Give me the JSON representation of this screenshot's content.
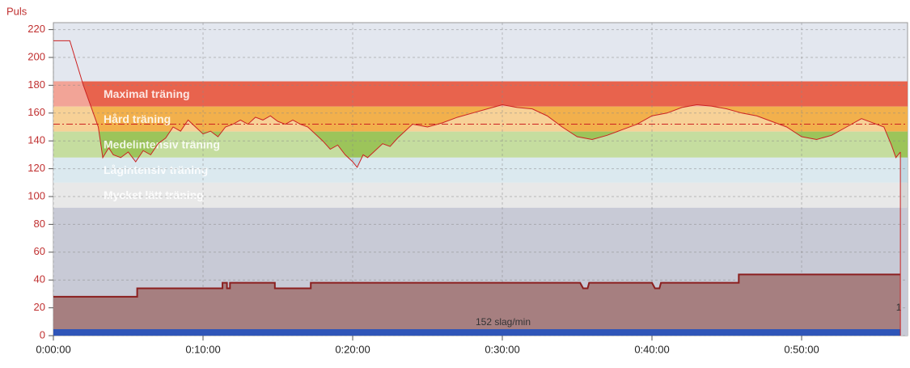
{
  "chart_data": {
    "type": "line",
    "y_label": "Puls",
    "xlim": [
      0,
      57.08
    ],
    "ylim": [
      0,
      225
    ],
    "xticks": [
      {
        "value": 0,
        "label": "0:00:00"
      },
      {
        "value": 10,
        "label": "0:10:00"
      },
      {
        "value": 20,
        "label": "0:20:00"
      },
      {
        "value": 30,
        "label": "0:30:00"
      },
      {
        "value": 40,
        "label": "0:40:00"
      },
      {
        "value": 50,
        "label": "0:50:00"
      }
    ],
    "yticks": [
      0,
      20,
      40,
      60,
      80,
      100,
      120,
      140,
      160,
      180,
      200,
      220
    ],
    "grid": true,
    "zones": [
      {
        "name": "Maximal träning",
        "from": 164.7,
        "to": 182.8,
        "color": "#e8634d"
      },
      {
        "name": "Hård träning",
        "from": 146.7,
        "to": 164.7,
        "color": "#f2b04c"
      },
      {
        "name": "Medelintensiv träning",
        "from": 128,
        "to": 146.7,
        "color": "#9cc45a"
      },
      {
        "name": "Lågintensiv träning",
        "from": 110,
        "to": 128,
        "color": "#c2d9e3"
      },
      {
        "name": "Mycket lätt träning",
        "from": 92,
        "to": 110,
        "color": "#d8d8d8"
      }
    ],
    "average": {
      "value": 152,
      "label": "152 slag/min"
    },
    "end_marker": "1",
    "series": [
      {
        "color": "#cc2222",
        "x": [
          0,
          1.1,
          2.0,
          3.0,
          3.3,
          3.7,
          4.0,
          4.5,
          5.0,
          5.5,
          6.0,
          6.5,
          7.0,
          7.5,
          8.0,
          8.5,
          9.0,
          9.5,
          10,
          10.5,
          11,
          11.5,
          12,
          12.5,
          13,
          13.5,
          14,
          14.5,
          15,
          15.5,
          16,
          16.5,
          17,
          17.5,
          18,
          18.5,
          19,
          19.5,
          20,
          20.3,
          20.7,
          21,
          21.5,
          22,
          22.5,
          23,
          23.5,
          24,
          25,
          26,
          27,
          28,
          29,
          30,
          31,
          32,
          33,
          34,
          35,
          36,
          37,
          38,
          39,
          40,
          41,
          42,
          43,
          44,
          45,
          46,
          47,
          48,
          49,
          50,
          51,
          52,
          53,
          54,
          55,
          55.5,
          56,
          56.3,
          56.6
        ],
        "values": [
          212,
          212,
          180,
          150,
          128,
          135,
          130,
          128,
          132,
          125,
          133,
          130,
          138,
          142,
          150,
          147,
          155,
          150,
          145,
          147,
          143,
          150,
          152,
          155,
          152,
          157,
          155,
          158,
          154,
          152,
          155,
          152,
          150,
          145,
          140,
          134,
          137,
          130,
          125,
          121,
          130,
          128,
          133,
          138,
          136,
          142,
          147,
          152,
          150,
          153,
          157,
          160,
          163,
          166,
          164,
          163,
          158,
          150,
          143,
          141,
          144,
          148,
          152,
          158,
          160,
          164,
          166,
          165,
          163,
          160,
          158,
          154,
          150,
          143,
          141,
          144,
          150,
          156,
          152,
          150,
          137,
          128,
          132
        ]
      },
      {
        "color": "#8b1f1f",
        "fill": "#a67f80",
        "x": [
          0,
          5.6,
          5.6,
          11.3,
          11.3,
          11.6,
          11.6,
          11.8,
          11.8,
          14.8,
          14.8,
          17.2,
          17.2,
          35.2,
          35.4,
          35.7,
          35.8,
          40.0,
          40.2,
          40.5,
          40.6,
          45.8,
          45.8,
          56.6
        ],
        "values": [
          28,
          28,
          34,
          34,
          38,
          38,
          34,
          34,
          38,
          38,
          34,
          34,
          38,
          38,
          34,
          34,
          38,
          38,
          34,
          34,
          38,
          38,
          44,
          44
        ]
      }
    ]
  }
}
